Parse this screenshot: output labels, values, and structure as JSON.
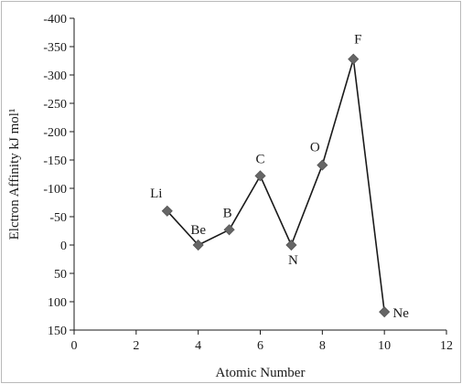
{
  "chart_data": {
    "type": "line",
    "title": "",
    "xlabel": "Atomic Number",
    "ylabel": "Elctron Affinity kJ mol¹",
    "xlim": [
      0,
      12
    ],
    "ylim": [
      -400,
      150
    ],
    "y_inverted": true,
    "x_ticks": [
      "0",
      "2",
      "4",
      "6",
      "8",
      "10",
      "12"
    ],
    "y_ticks": [
      "-400",
      "-350",
      "-300",
      "-250",
      "-200",
      "-150",
      "-100",
      "-50",
      "0",
      "50",
      "100",
      "150"
    ],
    "grid": false,
    "marker": "diamond",
    "line_color": "#1a1a1a",
    "marker_color": "#666666",
    "points": [
      {
        "element": "Li",
        "x": 3,
        "y": -60
      },
      {
        "element": "Be",
        "x": 4,
        "y": 0
      },
      {
        "element": "B",
        "x": 5,
        "y": -27
      },
      {
        "element": "C",
        "x": 6,
        "y": -122
      },
      {
        "element": "N",
        "x": 7,
        "y": 0
      },
      {
        "element": "O",
        "x": 8,
        "y": -141
      },
      {
        "element": "F",
        "x": 9,
        "y": -328
      },
      {
        "element": "Ne",
        "x": 10,
        "y": 118
      }
    ]
  }
}
